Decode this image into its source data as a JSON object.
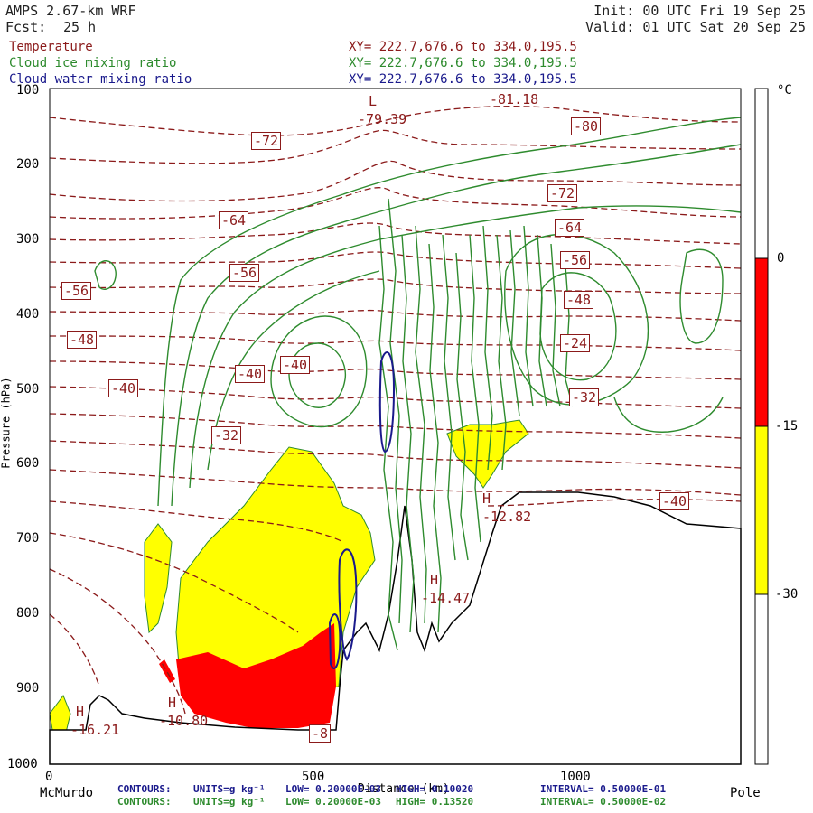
{
  "header": {
    "model": "AMPS 2.67-km WRF",
    "forecast_label": "Fcst:",
    "forecast_hours": "25 h",
    "init": "Init: 00 UTC Fri 19 Sep 25",
    "valid": "Valid: 01 UTC Sat 20 Sep 25"
  },
  "fields": [
    {
      "name": "Temperature",
      "xy": "XY= 222.7,676.6 to 334.0,195.5",
      "color": "#8b1a1a"
    },
    {
      "name": "Cloud ice mixing ratio",
      "xy": "XY= 222.7,676.6 to 334.0,195.5",
      "color": "#2e8b2e"
    },
    {
      "name": "Cloud water mixing ratio",
      "xy": "XY= 222.7,676.6 to 334.0,195.5",
      "color": "#1a1a8c"
    }
  ],
  "chart_data": {
    "type": "contour-cross-section",
    "xlabel": "Distance (km)",
    "ylabel": "Pressure (hPa)",
    "xlim": [
      0,
      1320
    ],
    "ylim": [
      1000,
      100
    ],
    "x_ticks": [
      0,
      500,
      1000
    ],
    "y_ticks": [
      100,
      200,
      300,
      400,
      500,
      600,
      700,
      800,
      900,
      1000
    ],
    "x_endpoints": {
      "left": "McMurdo",
      "right": "Pole"
    },
    "colorbar": {
      "unit": "°C",
      "labels": [
        "0",
        "-15",
        "-30"
      ],
      "bands": [
        {
          "range": "0 to -15",
          "color": "#ff0000"
        },
        {
          "range": "-15 to -30",
          "color": "#ffff00"
        }
      ]
    },
    "temperature_contour_labels": [
      "-72",
      "-80",
      "-72",
      "-64",
      "-64",
      "-56",
      "-56",
      "-56",
      "-48",
      "-48",
      "-40",
      "-40",
      "-40",
      "-32",
      "-32",
      "-40",
      "-24",
      "-8"
    ],
    "highs_lows": [
      {
        "kind": "L",
        "value": "-79.39"
      },
      {
        "kind": "",
        "value": "-81.18"
      },
      {
        "kind": "H",
        "value": "-16.21"
      },
      {
        "kind": "H",
        "value": "-10.80"
      },
      {
        "kind": "H",
        "value": "-14.47"
      },
      {
        "kind": "H",
        "value": "-12.82"
      }
    ],
    "water_contours": {
      "label": "CONTOURS:",
      "units": "UNITS=g kg⁻¹",
      "low": "LOW= 0.20000E-03",
      "high": "HIGH= 0.10020",
      "interval": "INTERVAL= 0.50000E-01"
    },
    "ice_contours": {
      "label": "CONTOURS:",
      "units": "UNITS=g kg⁻¹",
      "low": "LOW= 0.20000E-03",
      "high": "HIGH= 0.13520",
      "interval": "INTERVAL= 0.50000E-02"
    }
  }
}
